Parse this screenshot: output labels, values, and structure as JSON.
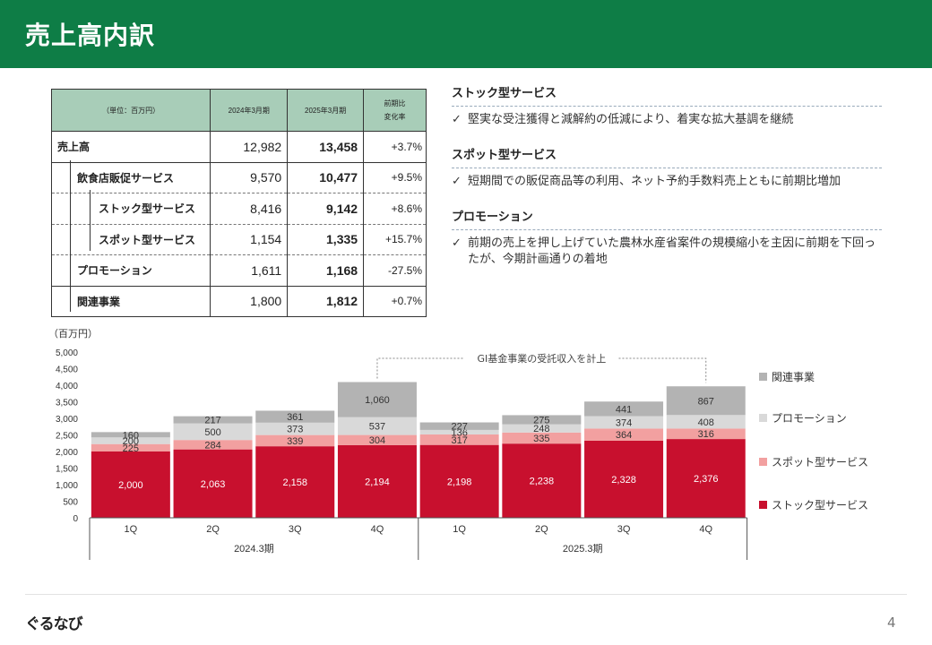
{
  "page": {
    "title": "売上高内訳",
    "page_number": "4",
    "logo": "ぐるなび"
  },
  "table": {
    "header": {
      "unit": "（単位：百万円）",
      "col1": "2024年3月期",
      "col2": "2025年3月期",
      "col3_line1": "前期比",
      "col3_line2": "変化率"
    },
    "rows": [
      {
        "label": "売上高",
        "v2024": "12,982",
        "v2025": "13,458",
        "change": "+3.7%"
      },
      {
        "label": "飲食店販促サービス",
        "v2024": "9,570",
        "v2025": "10,477",
        "change": "+9.5%"
      },
      {
        "label": "ストック型サービス",
        "v2024": "8,416",
        "v2025": "9,142",
        "change": "+8.6%"
      },
      {
        "label": "スポット型サービス",
        "v2024": "1,154",
        "v2025": "1,335",
        "change": "+15.7%"
      },
      {
        "label": "プロモーション",
        "v2024": "1,611",
        "v2025": "1,168",
        "change": "-27.5%"
      },
      {
        "label": "関連事業",
        "v2024": "1,800",
        "v2025": "1,812",
        "change": "+0.7%"
      }
    ]
  },
  "notes": [
    {
      "heading": "ストック型サービス",
      "body": "堅実な受注獲得と減解約の低減により、着実な拡大基調を継続"
    },
    {
      "heading": "スポット型サービス",
      "body": "短期間での販促商品等の利用、ネット予約手数料売上ともに前期比増加"
    },
    {
      "heading": "プロモーション",
      "body": "前期の売上を押し上げていた農林水産省案件の規模縮小を主因に前期を下回ったが、今期計画通りの着地"
    }
  ],
  "check_mark": "✓",
  "chart_data": {
    "type": "bar",
    "stacked": true,
    "unit_label": "（百万円）",
    "categories": [
      "1Q",
      "2Q",
      "3Q",
      "4Q",
      "1Q",
      "2Q",
      "3Q",
      "4Q"
    ],
    "groups": [
      {
        "label": "2024.3期",
        "start": 0,
        "end": 3
      },
      {
        "label": "2025.3期",
        "start": 4,
        "end": 7
      }
    ],
    "yticks": [
      "0",
      "500",
      "1,000",
      "1,500",
      "2,000",
      "2,500",
      "3,000",
      "3,500",
      "4,000",
      "4,500",
      "5,000"
    ],
    "ylim": [
      0,
      5000
    ],
    "annotation": "GI基金事業の受託収入を計上",
    "series": [
      {
        "name": "ストック型サービス",
        "color": "#c8102e",
        "values": [
          2000,
          2063,
          2158,
          2194,
          2198,
          2238,
          2328,
          2376
        ]
      },
      {
        "name": "スポット型サービス",
        "color": "#f2a0a0",
        "values": [
          225,
          284,
          339,
          304,
          317,
          335,
          364,
          316
        ]
      },
      {
        "name": "プロモーション",
        "color": "#d9d9d9",
        "values": [
          200,
          500,
          373,
          537,
          136,
          248,
          374,
          408
        ]
      },
      {
        "name": "関連事業",
        "color": "#b3b3b3",
        "values": [
          160,
          217,
          361,
          1060,
          227,
          275,
          441,
          867
        ]
      }
    ],
    "legend_position": "right"
  }
}
